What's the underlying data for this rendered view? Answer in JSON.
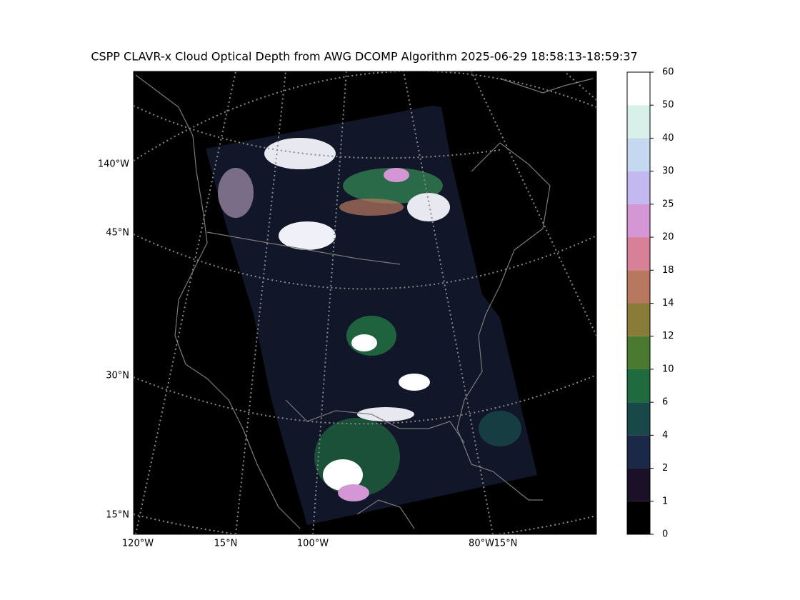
{
  "title": "CSPP CLAVR-x Cloud Optical Depth from AWG DCOMP Algorithm 2025-06-29 18:58:13-18:59:37",
  "map": {
    "left_labels": [
      "140°W",
      "45°N",
      "30°N",
      "15°N"
    ],
    "bottom_labels": [
      "120°W",
      "15°N",
      "100°W",
      "80°W",
      "15°N"
    ]
  },
  "colorbar": {
    "ticks": [
      0,
      1,
      2,
      4,
      6,
      10,
      12,
      14,
      18,
      20,
      25,
      30,
      40,
      50,
      60
    ],
    "colors": [
      "#000000",
      "#1c1028",
      "#1c2848",
      "#184848",
      "#206a40",
      "#4a7a30",
      "#887c38",
      "#b87860",
      "#d88098",
      "#d496d4",
      "#c4b8f0",
      "#c4d8f0",
      "#d8f0ea",
      "#ffffff"
    ]
  }
}
